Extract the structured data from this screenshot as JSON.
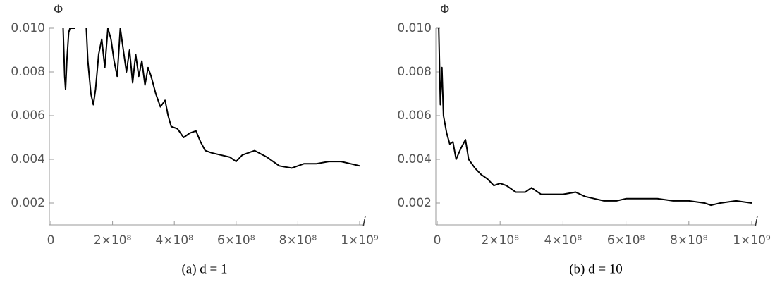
{
  "chart_data": [
    {
      "type": "line",
      "caption": "(a) d = 1",
      "ylabel": "Φ",
      "xlabel": "i",
      "xlim": [
        0,
        1000000000.0
      ],
      "ylim": [
        0.001,
        0.01
      ],
      "xticks": [
        0,
        {
          "value": 200000000.0,
          "label": "2×10⁸"
        },
        {
          "value": 400000000.0,
          "label": "4×10⁸"
        },
        {
          "value": 600000000.0,
          "label": "6×10⁸"
        },
        {
          "value": 800000000.0,
          "label": "8×10⁸"
        },
        {
          "value": 1000000000.0,
          "label": "1×10⁹"
        }
      ],
      "yticks": [
        0.002,
        0.004,
        0.006,
        0.008,
        {
          "value": 0.01,
          "label": "0.010"
        }
      ],
      "x": [
        40000000.0,
        45000000.0,
        48000000.0,
        52000000.0,
        58000000.0,
        62000000.0,
        80000000.0,
        100000000.0,
        115000000.0,
        120000000.0,
        130000000.0,
        138000000.0,
        145000000.0,
        155000000.0,
        165000000.0,
        175000000.0,
        185000000.0,
        195000000.0,
        205000000.0,
        215000000.0,
        225000000.0,
        235000000.0,
        245000000.0,
        255000000.0,
        265000000.0,
        275000000.0,
        285000000.0,
        295000000.0,
        305000000.0,
        315000000.0,
        325000000.0,
        340000000.0,
        355000000.0,
        370000000.0,
        380000000.0,
        390000000.0,
        410000000.0,
        430000000.0,
        450000000.0,
        470000000.0,
        485000000.0,
        500000000.0,
        520000000.0,
        550000000.0,
        580000000.0,
        600000000.0,
        620000000.0,
        660000000.0,
        700000000.0,
        740000000.0,
        780000000.0,
        820000000.0,
        860000000.0,
        900000000.0,
        940000000.0,
        970000000.0,
        1000000000.0
      ],
      "series": [
        {
          "color": "#000000",
          "values": [
            0.01,
            0.0078,
            0.0072,
            0.0085,
            0.0098,
            0.01,
            0.01,
            null,
            0.01,
            0.0085,
            0.007,
            0.0065,
            0.0072,
            0.0088,
            0.0095,
            0.0082,
            0.01,
            0.0095,
            0.0085,
            0.0078,
            0.01,
            0.009,
            0.008,
            0.009,
            0.0075,
            0.0088,
            0.0078,
            0.0085,
            0.0074,
            0.0082,
            0.0078,
            0.007,
            0.0064,
            0.0067,
            0.006,
            0.0055,
            0.0054,
            0.005,
            0.0052,
            0.0053,
            0.0048,
            0.0044,
            0.0043,
            0.0042,
            0.0041,
            0.0039,
            0.0042,
            0.0044,
            0.0041,
            0.0037,
            0.0036,
            0.0038,
            0.0038,
            0.0039,
            0.0039,
            0.0038,
            0.0037
          ]
        }
      ]
    },
    {
      "type": "line",
      "caption": "(b) d = 10",
      "ylabel": "Φ",
      "xlabel": "i",
      "xlim": [
        0,
        1000000000.0
      ],
      "ylim": [
        0.001,
        0.01
      ],
      "xticks": [
        0,
        {
          "value": 200000000.0,
          "label": "2×10⁸"
        },
        {
          "value": 400000000.0,
          "label": "4×10⁸"
        },
        {
          "value": 600000000.0,
          "label": "6×10⁸"
        },
        {
          "value": 800000000.0,
          "label": "8×10⁸"
        },
        {
          "value": 1000000000.0,
          "label": "1×10⁹"
        }
      ],
      "yticks": [
        0.002,
        0.004,
        0.006,
        0.008,
        {
          "value": 0.01,
          "label": "0.010"
        }
      ],
      "x": [
        5000000.0,
        10000000.0,
        15000000.0,
        20000000.0,
        30000000.0,
        40000000.0,
        50000000.0,
        60000000.0,
        75000000.0,
        90000000.0,
        100000000.0,
        120000000.0,
        140000000.0,
        160000000.0,
        180000000.0,
        200000000.0,
        220000000.0,
        250000000.0,
        280000000.0,
        300000000.0,
        330000000.0,
        360000000.0,
        400000000.0,
        440000000.0,
        470000000.0,
        500000000.0,
        530000000.0,
        570000000.0,
        600000000.0,
        650000000.0,
        700000000.0,
        750000000.0,
        800000000.0,
        850000000.0,
        870000000.0,
        900000000.0,
        950000000.0,
        1000000000.0
      ],
      "series": [
        {
          "color": "#000000",
          "values": [
            0.01,
            0.0065,
            0.0082,
            0.006,
            0.0052,
            0.0047,
            0.0048,
            0.004,
            0.0045,
            0.0049,
            0.004,
            0.0036,
            0.0033,
            0.0031,
            0.0028,
            0.0029,
            0.0028,
            0.0025,
            0.0025,
            0.0027,
            0.0024,
            0.0024,
            0.0024,
            0.0025,
            0.0023,
            0.0022,
            0.0021,
            0.0021,
            0.0022,
            0.0022,
            0.0022,
            0.0021,
            0.0021,
            0.002,
            0.0019,
            0.002,
            0.0021,
            0.002
          ]
        }
      ]
    }
  ]
}
